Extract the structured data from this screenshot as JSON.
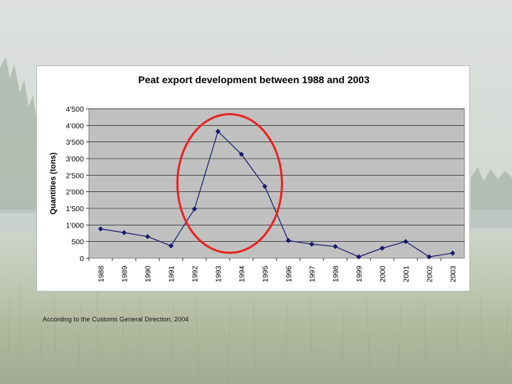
{
  "chart_data": {
    "type": "line",
    "title": "Peat export development between 1988 and 2003",
    "xlabel": "",
    "ylabel": "Quantities (tons)",
    "ylim": [
      0,
      4500
    ],
    "y_ticks": [
      0,
      500,
      1000,
      1500,
      2000,
      2500,
      3000,
      3500,
      4000,
      4500
    ],
    "y_tick_labels": [
      "0",
      "500",
      "1'000",
      "1'500",
      "2'000",
      "2'500",
      "3'000",
      "3'500",
      "4'000",
      "4'500"
    ],
    "categories": [
      "1988",
      "1989",
      "1990",
      "1991",
      "1992",
      "1993",
      "1994",
      "1995",
      "1996",
      "1997",
      "1998",
      "1999",
      "2000",
      "2001",
      "2002",
      "2003"
    ],
    "series": [
      {
        "name": "Peat export",
        "values": [
          880,
          770,
          650,
          370,
          1480,
          3820,
          3130,
          2160,
          530,
          420,
          350,
          40,
          300,
          500,
          40,
          150
        ]
      }
    ],
    "grid": true,
    "legend": "none",
    "highlight": {
      "shape": "ellipse",
      "color": "#e8231f",
      "around_categories": [
        "1992",
        "1993",
        "1994",
        "1995"
      ]
    }
  },
  "colors": {
    "line": "#17176e",
    "plot_bg": "#c0c0c0",
    "highlight": "#e8231f"
  },
  "footnote": "According to the Customs General Direction, 2004"
}
